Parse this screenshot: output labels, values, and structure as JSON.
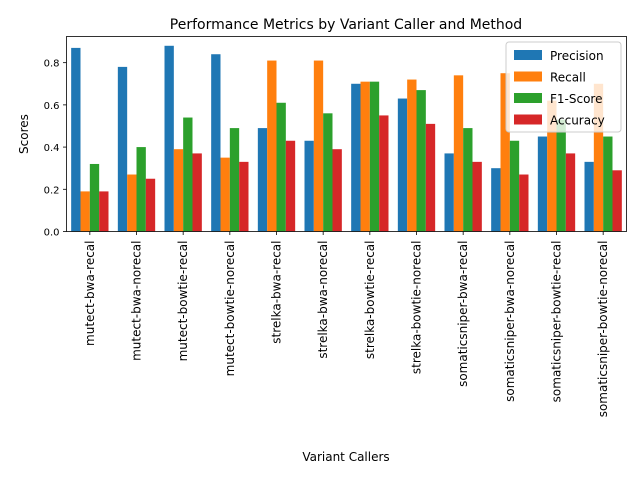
{
  "chart_data": {
    "type": "bar",
    "title": "Performance Metrics by Variant Caller and Method",
    "xlabel": "Variant Callers",
    "ylabel": "Scores",
    "ylim": [
      0,
      0.924
    ],
    "yticks": [
      0.0,
      0.2,
      0.4,
      0.6,
      0.8
    ],
    "grid": false,
    "legend_position": "top-right",
    "categories": [
      "mutect-bwa-recal",
      "mutect-bwa-norecal",
      "mutect-bowtie-recal",
      "mutect-bowtie-norecal",
      "strelka-bwa-recal",
      "strelka-bwa-norecal",
      "strelka-bowtie-recal",
      "strelka-bowtie-norecal",
      "somaticsniper-bwa-recal",
      "somaticsniper-bwa-norecal",
      "somaticsniper-bowtie-recal",
      "somaticsniper-bowtie-norecal"
    ],
    "series": [
      {
        "name": "Precision",
        "color": "#1f77b4",
        "values": [
          0.87,
          0.78,
          0.88,
          0.84,
          0.49,
          0.43,
          0.7,
          0.63,
          0.37,
          0.3,
          0.45,
          0.33
        ]
      },
      {
        "name": "Recall",
        "color": "#ff7f0e",
        "values": [
          0.19,
          0.27,
          0.39,
          0.35,
          0.81,
          0.81,
          0.71,
          0.72,
          0.74,
          0.75,
          0.62,
          0.7
        ]
      },
      {
        "name": "F1-Score",
        "color": "#2ca02c",
        "values": [
          0.32,
          0.4,
          0.54,
          0.49,
          0.61,
          0.56,
          0.71,
          0.67,
          0.49,
          0.43,
          0.53,
          0.45
        ]
      },
      {
        "name": "Accuracy",
        "color": "#d62728",
        "values": [
          0.19,
          0.25,
          0.37,
          0.33,
          0.43,
          0.39,
          0.55,
          0.51,
          0.33,
          0.27,
          0.37,
          0.29
        ]
      }
    ]
  }
}
